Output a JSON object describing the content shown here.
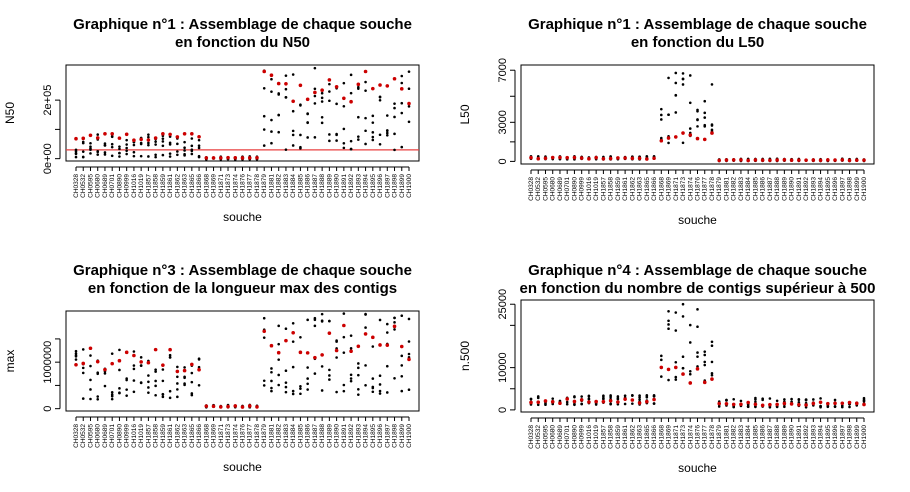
{
  "strains": [
    "CH0328",
    "CH0532",
    "CH0595",
    "CH0680",
    "CH0689",
    "CH0701",
    "CH0890",
    "CH0999",
    "CH1016",
    "CH1019",
    "CH1857",
    "CH1858",
    "CH1859",
    "CH1861",
    "CH1862",
    "CH1863",
    "CH1865",
    "CH1866",
    "CH1868",
    "CH1869",
    "CH1871",
    "CH1873",
    "CH1874",
    "CH1876",
    "CH1877",
    "CH1878",
    "CH1879",
    "CH1881",
    "CH1882",
    "CH1883",
    "CH1884",
    "CH1885",
    "CH1886",
    "CH1887",
    "CH1888",
    "CH1889",
    "CH1890",
    "CH1891",
    "CH1892",
    "CH1893",
    "CH1894",
    "CH1895",
    "CH1896",
    "CH1897",
    "CH1898",
    "CH1899",
    "CH1900"
  ],
  "colors": {
    "points": "#000000",
    "highlight": "#cc0000",
    "refline": "#e84040",
    "axis": "#000000"
  },
  "chart_data": [
    {
      "type": "scatter",
      "title_line1": "Graphique n°1 : Assemblage de chaque souche",
      "title_line2": "en fonction du N50",
      "xlabel": "souche",
      "ylabel": "N50",
      "ylim": [
        -8000,
        320000
      ],
      "yticks": [
        0,
        100000,
        200000
      ],
      "ytick_labels": [
        "0e+00",
        "",
        "2e+05"
      ],
      "hline": 30000,
      "groups": [
        {
          "strains": "CH0328-CH1866",
          "max": 85000,
          "min": 5000,
          "highlight": 85000
        },
        {
          "strains": "CH1868-CH1878",
          "max": 8000,
          "min": -3000,
          "highlight": 3000
        },
        {
          "strains": "CH1879-CH1900",
          "max": 310000,
          "min": 30000,
          "highlight": 260000
        }
      ]
    },
    {
      "type": "scatter",
      "title_line1": "Graphique n°1 : Assemblage de chaque souche",
      "title_line2": "en fonction du L50",
      "xlabel": "souche",
      "ylabel": "L50",
      "ylim": [
        -200,
        7400
      ],
      "yticks": [
        0,
        1500,
        3000,
        5000,
        7000
      ],
      "ytick_labels": [
        "0",
        "",
        "3000",
        "",
        "7000"
      ],
      "groups": [
        {
          "strains": "CH0328-CH1866",
          "max": 400,
          "min": 150,
          "highlight": 250
        },
        {
          "strains": "CH1868-CH1878",
          "max": 6800,
          "min": 1400,
          "highlight": 2000
        },
        {
          "strains": "CH1879-CH1900",
          "max": 200,
          "min": 30,
          "highlight": 100
        }
      ]
    },
    {
      "type": "scatter",
      "title_line1": "Graphique n°3 : Assemblage de chaque souche",
      "title_line2": "en fonction de la longueur max des contigs",
      "xlabel": "souche",
      "ylabel": "max",
      "ylim": [
        -50000,
        2100000
      ],
      "yticks": [
        0,
        500000,
        1000000,
        1500000
      ],
      "ytick_labels": [
        "0",
        "",
        "1000000",
        ""
      ],
      "groups": [
        {
          "strains": "CH0328-CH1866",
          "max": 1300000,
          "min": 200000,
          "highlight": 1100000
        },
        {
          "strains": "CH1868-CH1878",
          "max": 80000,
          "min": 30000,
          "highlight": 50000
        },
        {
          "strains": "CH1879-CH1900",
          "max": 2050000,
          "min": 300000,
          "highlight": 1500000
        }
      ]
    },
    {
      "type": "scatter",
      "title_line1": "Graphique n°4 : Assemblage de chaque souche",
      "title_line2": "en fonction du nombre de contigs supérieur à 500",
      "xlabel": "souche",
      "ylabel": "n.500",
      "ylim": [
        -500,
        26000
      ],
      "yticks": [
        0,
        5000,
        10000,
        20000,
        25000
      ],
      "ytick_labels": [
        "0",
        "",
        "10000",
        "",
        "25000"
      ],
      "groups": [
        {
          "strains": "CH0328-CH1866",
          "max": 3500,
          "min": 1200,
          "highlight": 2200
        },
        {
          "strains": "CH1868-CH1878",
          "max": 25000,
          "min": 6000,
          "highlight": 9000
        },
        {
          "strains": "CH1879-CH1900",
          "max": 2800,
          "min": 600,
          "highlight": 1500
        }
      ]
    }
  ]
}
